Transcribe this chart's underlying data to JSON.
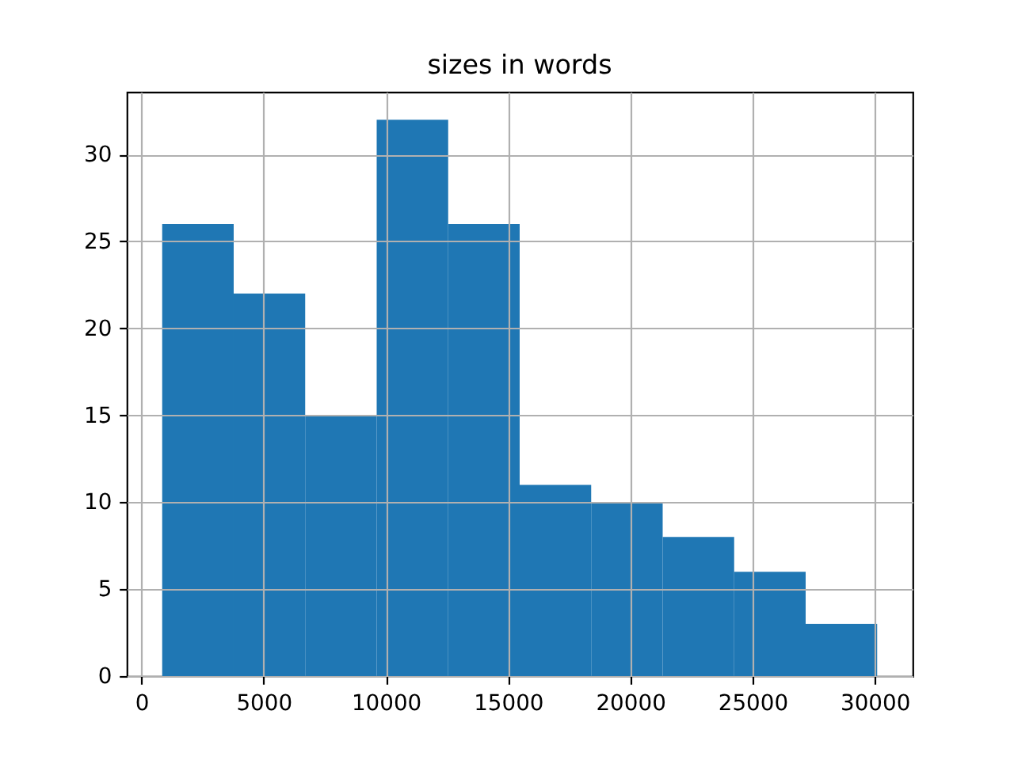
{
  "chart_data": {
    "type": "histogram",
    "title": "sizes in words",
    "bins": [
      850,
      3775,
      6700,
      9625,
      12550,
      15475,
      18400,
      21325,
      24250,
      27175,
      30100
    ],
    "values": [
      26,
      22,
      15,
      32,
      26,
      11,
      10,
      8,
      6,
      3
    ],
    "color": "#1f77b4",
    "xlim": [
      -600,
      31550
    ],
    "xticks": [
      0,
      5000,
      10000,
      15000,
      20000,
      25000,
      30000
    ],
    "ylim": [
      0,
      33.6
    ],
    "yticks": [
      0,
      5,
      10,
      15,
      20,
      25,
      30
    ],
    "grid": true
  }
}
